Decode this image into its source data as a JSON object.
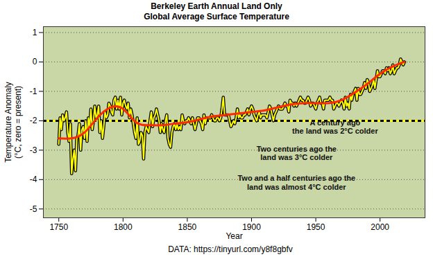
{
  "chart_data": {
    "type": "line",
    "title": "Berkeley Earth Annual Land Only",
    "subtitle": "Global Average Surface Temperature",
    "x_label": "Year",
    "y_label": "Temperature Anomaly\n(°C, zero = present)",
    "caption": "DATA: https://tinyurl.com/y8f8gbfv",
    "xlim": [
      1738,
      2035
    ],
    "xticks": [
      1750,
      1800,
      1850,
      1900,
      1950,
      2000
    ],
    "ylim": [
      -5.3,
      1.2
    ],
    "yticks": [
      -5,
      -4,
      -3,
      -2,
      -1,
      0,
      1
    ],
    "grid": true,
    "x": [
      1750,
      1751,
      1752,
      1753,
      1754,
      1755,
      1756,
      1757,
      1758,
      1759,
      1760,
      1761,
      1762,
      1763,
      1764,
      1765,
      1766,
      1767,
      1768,
      1769,
      1770,
      1771,
      1772,
      1773,
      1774,
      1775,
      1776,
      1777,
      1778,
      1779,
      1780,
      1781,
      1782,
      1783,
      1784,
      1785,
      1786,
      1787,
      1788,
      1789,
      1790,
      1791,
      1792,
      1793,
      1794,
      1795,
      1796,
      1797,
      1798,
      1799,
      1800,
      1801,
      1802,
      1803,
      1804,
      1805,
      1806,
      1807,
      1808,
      1809,
      1810,
      1811,
      1812,
      1813,
      1814,
      1815,
      1816,
      1817,
      1818,
      1819,
      1820,
      1821,
      1822,
      1823,
      1824,
      1825,
      1826,
      1827,
      1828,
      1829,
      1830,
      1831,
      1832,
      1833,
      1834,
      1835,
      1836,
      1837,
      1838,
      1839,
      1840,
      1841,
      1842,
      1843,
      1844,
      1845,
      1846,
      1847,
      1848,
      1849,
      1850,
      1851,
      1852,
      1853,
      1854,
      1855,
      1856,
      1857,
      1858,
      1859,
      1860,
      1861,
      1862,
      1863,
      1864,
      1865,
      1866,
      1867,
      1868,
      1869,
      1870,
      1871,
      1872,
      1873,
      1874,
      1875,
      1876,
      1877,
      1878,
      1879,
      1880,
      1881,
      1882,
      1883,
      1884,
      1885,
      1886,
      1887,
      1888,
      1889,
      1890,
      1891,
      1892,
      1893,
      1894,
      1895,
      1896,
      1897,
      1898,
      1899,
      1900,
      1901,
      1902,
      1903,
      1904,
      1905,
      1906,
      1907,
      1908,
      1909,
      1910,
      1911,
      1912,
      1913,
      1914,
      1915,
      1916,
      1917,
      1918,
      1919,
      1920,
      1921,
      1922,
      1923,
      1924,
      1925,
      1926,
      1927,
      1928,
      1929,
      1930,
      1931,
      1932,
      1933,
      1934,
      1935,
      1936,
      1937,
      1938,
      1939,
      1940,
      1941,
      1942,
      1943,
      1944,
      1945,
      1946,
      1947,
      1948,
      1949,
      1950,
      1951,
      1952,
      1953,
      1954,
      1955,
      1956,
      1957,
      1958,
      1959,
      1960,
      1961,
      1962,
      1963,
      1964,
      1965,
      1966,
      1967,
      1968,
      1969,
      1970,
      1971,
      1972,
      1973,
      1974,
      1975,
      1976,
      1977,
      1978,
      1979,
      1980,
      1981,
      1982,
      1983,
      1984,
      1985,
      1986,
      1987,
      1988,
      1989,
      1990,
      1991,
      1992,
      1993,
      1994,
      1995,
      1996,
      1997,
      1998,
      1999,
      2000,
      2001,
      2002,
      2003,
      2004,
      2005,
      2006,
      2007,
      2008,
      2009,
      2010,
      2011,
      2012,
      2013,
      2014,
      2015,
      2016,
      2017,
      2018,
      2019
    ],
    "series": [
      {
        "color": "#ffff00",
        "values": [
          -2.8,
          -1.9,
          -2.3,
          -1.8,
          -2.0,
          -1.9,
          -1.7,
          -2.4,
          -2.7,
          -2.1,
          -3.8,
          -3.3,
          -3.0,
          -3.7,
          -2.6,
          -2.5,
          -2.1,
          -3.0,
          -2.3,
          -2.2,
          -2.6,
          -2.0,
          -2.7,
          -1.9,
          -2.2,
          -1.6,
          -2.3,
          -2.0,
          -1.5,
          -1.9,
          -1.8,
          -1.5,
          -2.4,
          -2.0,
          -2.6,
          -2.2,
          -1.7,
          -1.9,
          -1.8,
          -1.4,
          -1.5,
          -1.7,
          -1.8,
          -1.3,
          -1.2,
          -1.6,
          -1.3,
          -1.6,
          -1.2,
          -1.8,
          -1.4,
          -1.3,
          -1.5,
          -1.6,
          -1.4,
          -1.9,
          -1.6,
          -1.8,
          -2.1,
          -2.4,
          -2.6,
          -1.9,
          -2.8,
          -2.7,
          -2.4,
          -2.5,
          -3.3,
          -2.4,
          -2.2,
          -2.3,
          -2.4,
          -2.0,
          -1.7,
          -2.2,
          -1.9,
          -1.8,
          -1.6,
          -1.8,
          -2.0,
          -2.4,
          -2.1,
          -2.3,
          -2.4,
          -2.0,
          -1.8,
          -2.6,
          -2.8,
          -2.9,
          -2.4,
          -2.2,
          -2.1,
          -2.3,
          -2.1,
          -2.3,
          -2.2,
          -2.3,
          -1.8,
          -2.0,
          -2.1,
          -2.0,
          -2.0,
          -1.9,
          -2.0,
          -2.1,
          -1.9,
          -2.1,
          -2.3,
          -2.1,
          -1.9,
          -1.9,
          -2.0,
          -2.1,
          -2.3,
          -1.8,
          -2.1,
          -1.9,
          -1.9,
          -1.9,
          -1.9,
          -1.8,
          -1.9,
          -2.0,
          -2.0,
          -1.9,
          -1.9,
          -2.0,
          -1.9,
          -1.6,
          -1.2,
          -1.8,
          -1.8,
          -1.8,
          -1.8,
          -2.0,
          -2.2,
          -2.1,
          -2.0,
          -2.1,
          -1.9,
          -1.6,
          -1.9,
          -1.8,
          -1.9,
          -1.9,
          -1.8,
          -1.8,
          -1.7,
          -1.6,
          -1.8,
          -1.6,
          -1.5,
          -1.6,
          -1.8,
          -1.9,
          -2.0,
          -1.8,
          -1.7,
          -1.9,
          -1.8,
          -1.8,
          -1.8,
          -1.8,
          -1.9,
          -1.7,
          -1.5,
          -1.6,
          -1.8,
          -2.0,
          -1.8,
          -1.7,
          -1.6,
          -1.5,
          -1.6,
          -1.6,
          -1.6,
          -1.5,
          -1.4,
          -1.5,
          -1.5,
          -1.7,
          -1.3,
          -1.4,
          -1.4,
          -1.5,
          -1.4,
          -1.5,
          -1.4,
          -1.3,
          -1.2,
          -1.3,
          -1.3,
          -1.4,
          -1.4,
          -1.3,
          -1.2,
          -1.3,
          -1.5,
          -1.4,
          -1.4,
          -1.5,
          -1.6,
          -1.4,
          -1.3,
          -1.2,
          -1.4,
          -1.4,
          -1.6,
          -1.3,
          -1.3,
          -1.3,
          -1.3,
          -1.2,
          -1.3,
          -1.3,
          -1.6,
          -1.5,
          -1.4,
          -1.4,
          -1.5,
          -1.4,
          -1.3,
          -1.4,
          -1.6,
          -1.2,
          -1.5,
          -1.4,
          -1.6,
          -1.1,
          -1.3,
          -1.1,
          -1.0,
          -0.9,
          -1.3,
          -0.9,
          -1.1,
          -1.1,
          -1.0,
          -0.9,
          -0.7,
          -0.9,
          -0.6,
          -0.7,
          -1.0,
          -0.9,
          -0.8,
          -0.6,
          -0.9,
          -0.6,
          -0.3,
          -0.5,
          -0.5,
          -0.4,
          -0.3,
          -0.3,
          -0.4,
          -0.2,
          -0.3,
          -0.2,
          -0.4,
          -0.3,
          -0.1,
          -0.4,
          -0.3,
          -0.2,
          -0.2,
          -0.1,
          0.1,
          0.0,
          -0.1,
          0.0
        ]
      },
      {
        "color": "#ff2a00",
        "x": [
          1750,
          1760,
          1770,
          1780,
          1790,
          1800,
          1810,
          1820,
          1830,
          1840,
          1850,
          1860,
          1870,
          1880,
          1890,
          1900,
          1910,
          1920,
          1930,
          1940,
          1950,
          1960,
          1970,
          1980,
          1990,
          2000,
          2010,
          2019
        ],
        "values": [
          -2.6,
          -2.6,
          -2.4,
          -1.9,
          -1.55,
          -1.6,
          -2.05,
          -2.15,
          -2.15,
          -2.1,
          -2.05,
          -1.95,
          -1.85,
          -1.8,
          -1.75,
          -1.7,
          -1.65,
          -1.55,
          -1.45,
          -1.4,
          -1.4,
          -1.4,
          -1.3,
          -1.05,
          -0.75,
          -0.4,
          -0.15,
          0.0
        ]
      }
    ],
    "reference_line": {
      "value": -2,
      "color": "#ffff00",
      "line_style": "dashed"
    },
    "annotations": [
      {
        "text": "A century ago\nthe land was 2°C colder",
        "x": 1965,
        "y": -2.2
      },
      {
        "text": "Two centuries ago the\nland was 3°C colder",
        "x": 1935,
        "y": -3.1
      },
      {
        "text": "Two and a half centuries ago the\nland was almost 4°C colder",
        "x": 1935,
        "y": -4.1
      }
    ]
  }
}
